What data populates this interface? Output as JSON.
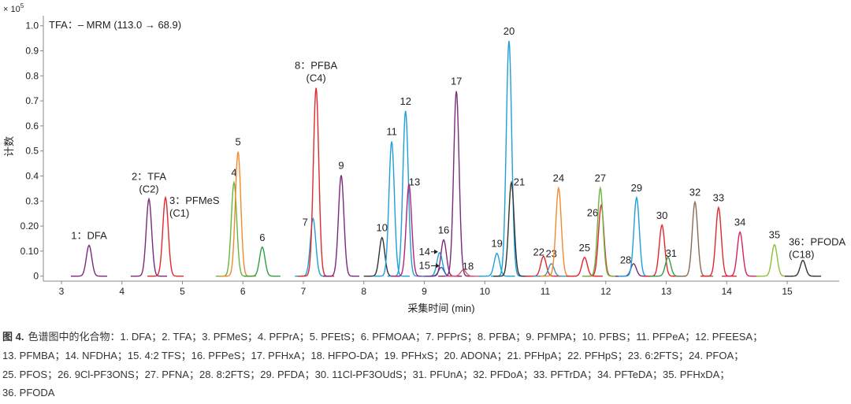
{
  "chart_data": {
    "type": "chromatogram",
    "annotation": "TFA：– MRM (113.0 → 68.9)",
    "x_label": "采集时间 (min)",
    "y_label": "计数",
    "y_multiplier": "× 10",
    "y_multiplier_exp": "5",
    "xlim": [
      2.7,
      15.86
    ],
    "ylim": [
      -0.02,
      1.04
    ],
    "xticks": [
      3,
      4,
      5,
      6,
      7,
      8,
      9,
      10,
      11,
      12,
      13,
      14,
      15
    ],
    "yticks": [
      0,
      {
        "value": 0.1,
        "label": "0.10"
      },
      {
        "value": 0.2,
        "label": "0.20"
      },
      0.3,
      0.4,
      0.5,
      0.6,
      0.7,
      0.8,
      0.9,
      {
        "value": 1,
        "label": "1.0"
      }
    ],
    "peaks": [
      {
        "label": [
          "1：DFA"
        ],
        "x": 3.456,
        "y": 0.123,
        "color": "#7b2a7b"
      },
      {
        "label": [
          "2：TFA",
          "(C2)"
        ],
        "x": 4.446,
        "y": 0.308,
        "color": "#7b2a7b"
      },
      {
        "label": [
          "3：PFMeS",
          "(C1)"
        ],
        "x": 4.72,
        "y": 0.314,
        "color": "#e0282e"
      },
      {
        "label": [
          "4"
        ],
        "x": 5.853,
        "y": 0.374,
        "color": "#6ab43e"
      },
      {
        "label": [
          "5"
        ],
        "x": 5.92,
        "y": 0.497,
        "color": "#f08a2c"
      },
      {
        "label": [
          "6"
        ],
        "x": 6.32,
        "y": 0.116,
        "color": "#2ea043"
      },
      {
        "label": [
          "7"
        ],
        "x": 7.16,
        "y": 0.23,
        "color": "#1e9fd8"
      },
      {
        "label": [
          "8：PFBA",
          "(C4)"
        ],
        "x": 7.21,
        "y": 0.752,
        "color": "#e0282e"
      },
      {
        "label": [
          "9"
        ],
        "x": 7.625,
        "y": 0.403,
        "color": "#7b2a7b"
      },
      {
        "label": [
          "10"
        ],
        "x": 8.3,
        "y": 0.154,
        "color": "#333333"
      },
      {
        "label": [
          "11"
        ],
        "x": 8.46,
        "y": 0.538,
        "color": "#1e9fd8"
      },
      {
        "label": [
          "12"
        ],
        "x": 8.69,
        "y": 0.66,
        "color": "#1e9fd8"
      },
      {
        "label": [
          "13"
        ],
        "x": 8.746,
        "y": 0.365,
        "color": "#b0247a"
      },
      {
        "label": [
          "14"
        ],
        "x": 9.254,
        "y": 0.094,
        "color": "#1e9fd8"
      },
      {
        "label": [
          "15"
        ],
        "x": 9.28,
        "y": 0.035,
        "color": "#3060c0"
      },
      {
        "label": [
          "16"
        ],
        "x": 9.32,
        "y": 0.145,
        "color": "#7b2a7b"
      },
      {
        "label": [
          "17"
        ],
        "x": 9.53,
        "y": 0.739,
        "color": "#7b2a7b"
      },
      {
        "label": [
          "18"
        ],
        "x": 9.645,
        "y": 0.025,
        "color": "#d05a6a"
      },
      {
        "label": [
          "19"
        ],
        "x": 10.2,
        "y": 0.091,
        "color": "#1e9fd8"
      },
      {
        "label": [
          "20"
        ],
        "x": 10.4,
        "y": 0.94,
        "color": "#1e9fd8"
      },
      {
        "label": [
          "21"
        ],
        "x": 10.44,
        "y": 0.374,
        "color": "#333333"
      },
      {
        "label": [
          "22"
        ],
        "x": 10.97,
        "y": 0.079,
        "color": "#e0282e"
      },
      {
        "label": [
          "23"
        ],
        "x": 11.1,
        "y": 0.05,
        "color": "#4a8fa8"
      },
      {
        "label": [
          "24"
        ],
        "x": 11.22,
        "y": 0.352,
        "color": "#f08a2c"
      },
      {
        "label": [
          "25"
        ],
        "x": 11.65,
        "y": 0.075,
        "color": "#e0282e"
      },
      {
        "label": [
          "26"
        ],
        "x": 11.925,
        "y": 0.283,
        "color": "#e0282e"
      },
      {
        "label": [
          "27"
        ],
        "x": 11.91,
        "y": 0.352,
        "color": "#6ab43e"
      },
      {
        "label": [
          "28"
        ],
        "x": 12.46,
        "y": 0.05,
        "color": "#7b2a7b"
      },
      {
        "label": [
          "29"
        ],
        "x": 12.51,
        "y": 0.314,
        "color": "#1e9fd8"
      },
      {
        "label": [
          "30"
        ],
        "x": 12.93,
        "y": 0.204,
        "color": "#e0282e"
      },
      {
        "label": [
          "31"
        ],
        "x": 13.03,
        "y": 0.075,
        "color": "#2ea043"
      },
      {
        "label": [
          "32"
        ],
        "x": 13.475,
        "y": 0.296,
        "color": "#8b6b55"
      },
      {
        "label": [
          "33"
        ],
        "x": 13.865,
        "y": 0.274,
        "color": "#e0282e"
      },
      {
        "label": [
          "34"
        ],
        "x": 14.22,
        "y": 0.176,
        "color": "#d0245a"
      },
      {
        "label": [
          "35"
        ],
        "x": 14.79,
        "y": 0.126,
        "color": "#8cbf3a"
      },
      {
        "label": [
          "36：PFODA",
          "(C18)"
        ],
        "x": 15.26,
        "y": 0.063,
        "color": "#333333"
      }
    ]
  },
  "caption": {
    "label": "图 4.",
    "lines": [
      "色谱图中的化合物：1. DFA；2. TFA；3. PFMeS；4. PFPrA；5. PFEtS；6. PFMOAA；7. PFPrS；8. PFBA；9. PFMPA；10. PFBS；11. PFPeA；12. PFEESA；",
      "13. PFMBA；14. NFDHA；15. 4:2 TFS；16. PFPeS；17. PFHxA；18. HFPO-DA；19. PFHxS；20. ADONA；21. PFHpA；22. PFHpS；23. 6:2FTS；24. PFOA；",
      "25. PFOS；26. 9Cl-PF3ONS；27. PFNA；28. 8:2FTS；29. PFDA；30. 11Cl-PF3OUdS；31. PFUnA；32. PFDoA；33. PFTrDA；34. PFTeDA；35. PFHxDA；",
      "36. PFODA"
    ]
  }
}
